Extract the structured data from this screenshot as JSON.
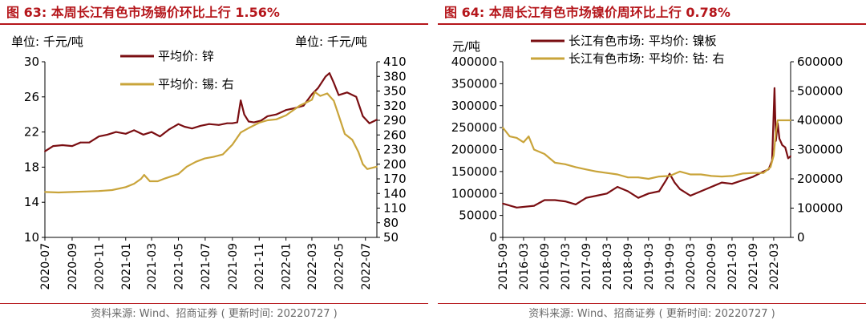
{
  "charts": [
    {
      "figure_title": "图 63:  本周长江有色市场锡价环比上行 1.56%",
      "source": "资料来源:  Wind、招商证券 ( 更新时间: 20220727 )",
      "left_unit": "单位:  千元/吨",
      "right_unit": "单位:  千元/吨"
    },
    {
      "figure_title": "图 64:  本周长江有色市场镍价周环比上行 0.78%",
      "source": "资料来源:  Wind、招商证券 ( 更新时间: 20220727 )",
      "left_unit": "元/吨",
      "right_unit": ""
    }
  ],
  "colors": {
    "dark_red": "#7A0E12",
    "gold": "#C9A43A",
    "title_red": "#B5161B"
  },
  "chart_data": [
    {
      "type": "line",
      "x_ticks": [
        "2020-07",
        "2020-09",
        "2020-11",
        "2021-01",
        "2021-03",
        "2021-05",
        "2021-07",
        "2021-09",
        "2021-11",
        "2022-01",
        "2022-03",
        "2022-05",
        "2022-07"
      ],
      "x_range": [
        "2020-07-01",
        "2022-07-27"
      ],
      "left_axis": {
        "ticks": [
          10,
          14,
          18,
          22,
          26,
          30
        ],
        "ylim": [
          10,
          30
        ]
      },
      "right_axis": {
        "ticks": [
          50,
          80,
          110,
          140,
          170,
          200,
          230,
          260,
          290,
          320,
          350,
          380,
          410
        ],
        "ylim": [
          50,
          410
        ]
      },
      "grid": false,
      "legend_position": "top",
      "series": [
        {
          "name": "平均价: 锌",
          "axis": "left",
          "x": [
            "2020-07-01",
            "2020-07-20",
            "2020-08-10",
            "2020-09-01",
            "2020-09-20",
            "2020-10-10",
            "2020-11-01",
            "2020-11-20",
            "2020-12-10",
            "2021-01-01",
            "2021-01-20",
            "2021-02-10",
            "2021-03-01",
            "2021-03-20",
            "2021-04-10",
            "2021-05-01",
            "2021-05-15",
            "2021-06-01",
            "2021-06-20",
            "2021-07-10",
            "2021-08-01",
            "2021-08-20",
            "2021-09-01",
            "2021-09-12",
            "2021-09-20",
            "2021-09-28",
            "2021-10-08",
            "2021-10-20",
            "2021-11-05",
            "2021-11-20",
            "2021-12-10",
            "2022-01-01",
            "2022-01-20",
            "2022-02-10",
            "2022-03-01",
            "2022-03-15",
            "2022-04-01",
            "2022-04-10",
            "2022-04-20",
            "2022-05-01",
            "2022-05-20",
            "2022-06-10",
            "2022-06-25",
            "2022-07-10",
            "2022-07-27"
          ],
          "y": [
            19.8,
            20.4,
            20.5,
            20.4,
            20.8,
            20.8,
            21.5,
            21.7,
            22.0,
            21.8,
            22.2,
            21.7,
            22.0,
            21.5,
            22.3,
            22.9,
            22.6,
            22.4,
            22.7,
            22.9,
            22.8,
            23.0,
            23.0,
            23.1,
            25.6,
            24.0,
            23.2,
            23.1,
            23.3,
            23.8,
            24.0,
            24.5,
            24.7,
            25.0,
            26.3,
            27.0,
            28.3,
            28.7,
            27.6,
            26.2,
            26.5,
            26.0,
            23.8,
            23.0,
            23.4
          ]
        },
        {
          "name": "平均价: 锡: 右",
          "axis": "right",
          "x": [
            "2020-07-01",
            "2020-08-01",
            "2020-09-01",
            "2020-10-01",
            "2020-11-01",
            "2020-12-01",
            "2021-01-01",
            "2021-01-20",
            "2021-02-05",
            "2021-02-12",
            "2021-02-25",
            "2021-03-15",
            "2021-04-01",
            "2021-05-01",
            "2021-05-20",
            "2021-06-10",
            "2021-07-01",
            "2021-07-20",
            "2021-08-10",
            "2021-09-01",
            "2021-09-20",
            "2021-10-10",
            "2021-11-01",
            "2021-11-20",
            "2021-12-10",
            "2022-01-01",
            "2022-02-01",
            "2022-03-01",
            "2022-03-08",
            "2022-03-20",
            "2022-04-05",
            "2022-04-20",
            "2022-05-01",
            "2022-05-15",
            "2022-06-01",
            "2022-06-15",
            "2022-06-25",
            "2022-07-05",
            "2022-07-27"
          ],
          "y": [
            143,
            142,
            143,
            144,
            145,
            147,
            153,
            160,
            170,
            178,
            165,
            165,
            171,
            180,
            195,
            205,
            212,
            215,
            220,
            240,
            265,
            275,
            285,
            290,
            292,
            300,
            320,
            332,
            348,
            340,
            345,
            330,
            300,
            262,
            250,
            225,
            200,
            190,
            195
          ]
        }
      ]
    },
    {
      "type": "line",
      "x_ticks": [
        "2015-09",
        "2016-03",
        "2016-09",
        "2017-03",
        "2017-09",
        "2018-03",
        "2018-09",
        "2019-03",
        "2019-09",
        "2020-03",
        "2020-09",
        "2021-03",
        "2021-09",
        "2022-03"
      ],
      "x_range": [
        "2015-09-01",
        "2022-07-27"
      ],
      "left_axis": {
        "ticks": [
          0,
          50000,
          100000,
          150000,
          200000,
          250000,
          300000,
          350000,
          400000
        ],
        "ylim": [
          0,
          400000
        ]
      },
      "right_axis": {
        "ticks": [
          0,
          100000,
          200000,
          300000,
          400000,
          500000,
          600000
        ],
        "ylim": [
          0,
          600000
        ]
      },
      "grid": false,
      "legend_position": "top",
      "series": [
        {
          "name": "长江有色市场: 平均价: 镍板",
          "axis": "left",
          "x": [
            "2015-09-01",
            "2016-01-01",
            "2016-06-01",
            "2016-09-01",
            "2016-12-01",
            "2017-03-01",
            "2017-06-01",
            "2017-09-01",
            "2017-12-01",
            "2018-03-01",
            "2018-06-01",
            "2018-09-01",
            "2018-12-01",
            "2019-03-01",
            "2019-06-01",
            "2019-08-01",
            "2019-09-01",
            "2019-10-15",
            "2019-12-01",
            "2020-03-01",
            "2020-06-01",
            "2020-09-01",
            "2020-12-01",
            "2021-03-01",
            "2021-06-01",
            "2021-09-01",
            "2021-12-01",
            "2022-01-15",
            "2022-02-15",
            "2022-03-08",
            "2022-03-20",
            "2022-04-05",
            "2022-04-20",
            "2022-05-15",
            "2022-06-10",
            "2022-07-05",
            "2022-07-27"
          ],
          "y": [
            77000,
            68000,
            72000,
            85000,
            85000,
            82000,
            75000,
            90000,
            95000,
            100000,
            115000,
            105000,
            90000,
            100000,
            105000,
            130000,
            145000,
            125000,
            110000,
            95000,
            105000,
            115000,
            125000,
            122000,
            130000,
            138000,
            150000,
            155000,
            175000,
            340000,
            220000,
            260000,
            225000,
            210000,
            205000,
            180000,
            185000
          ]
        },
        {
          "name": "长江有色市场: 平均价: 钴: 右",
          "axis": "right",
          "x": [
            "2015-09-01",
            "2015-11-01",
            "2016-01-01",
            "2016-03-01",
            "2016-04-15",
            "2016-06-01",
            "2016-09-01",
            "2016-12-01",
            "2017-03-01",
            "2017-06-01",
            "2017-09-01",
            "2017-12-01",
            "2018-03-01",
            "2018-06-01",
            "2018-09-01",
            "2018-12-01",
            "2019-03-01",
            "2019-06-01",
            "2019-09-01",
            "2019-12-01",
            "2020-03-01",
            "2020-06-01",
            "2020-09-01",
            "2020-12-01",
            "2021-03-01",
            "2021-06-01",
            "2021-09-01",
            "2021-12-01",
            "2022-02-01",
            "2022-03-01",
            "2022-03-20",
            "2022-04-05",
            "2022-07-27"
          ],
          "y": [
            375000,
            345000,
            340000,
            325000,
            345000,
            300000,
            285000,
            255000,
            250000,
            240000,
            232000,
            225000,
            220000,
            215000,
            205000,
            205000,
            200000,
            208000,
            210000,
            225000,
            215000,
            215000,
            210000,
            208000,
            210000,
            218000,
            220000,
            220000,
            240000,
            280000,
            360000,
            400000,
            400000
          ]
        }
      ]
    }
  ]
}
